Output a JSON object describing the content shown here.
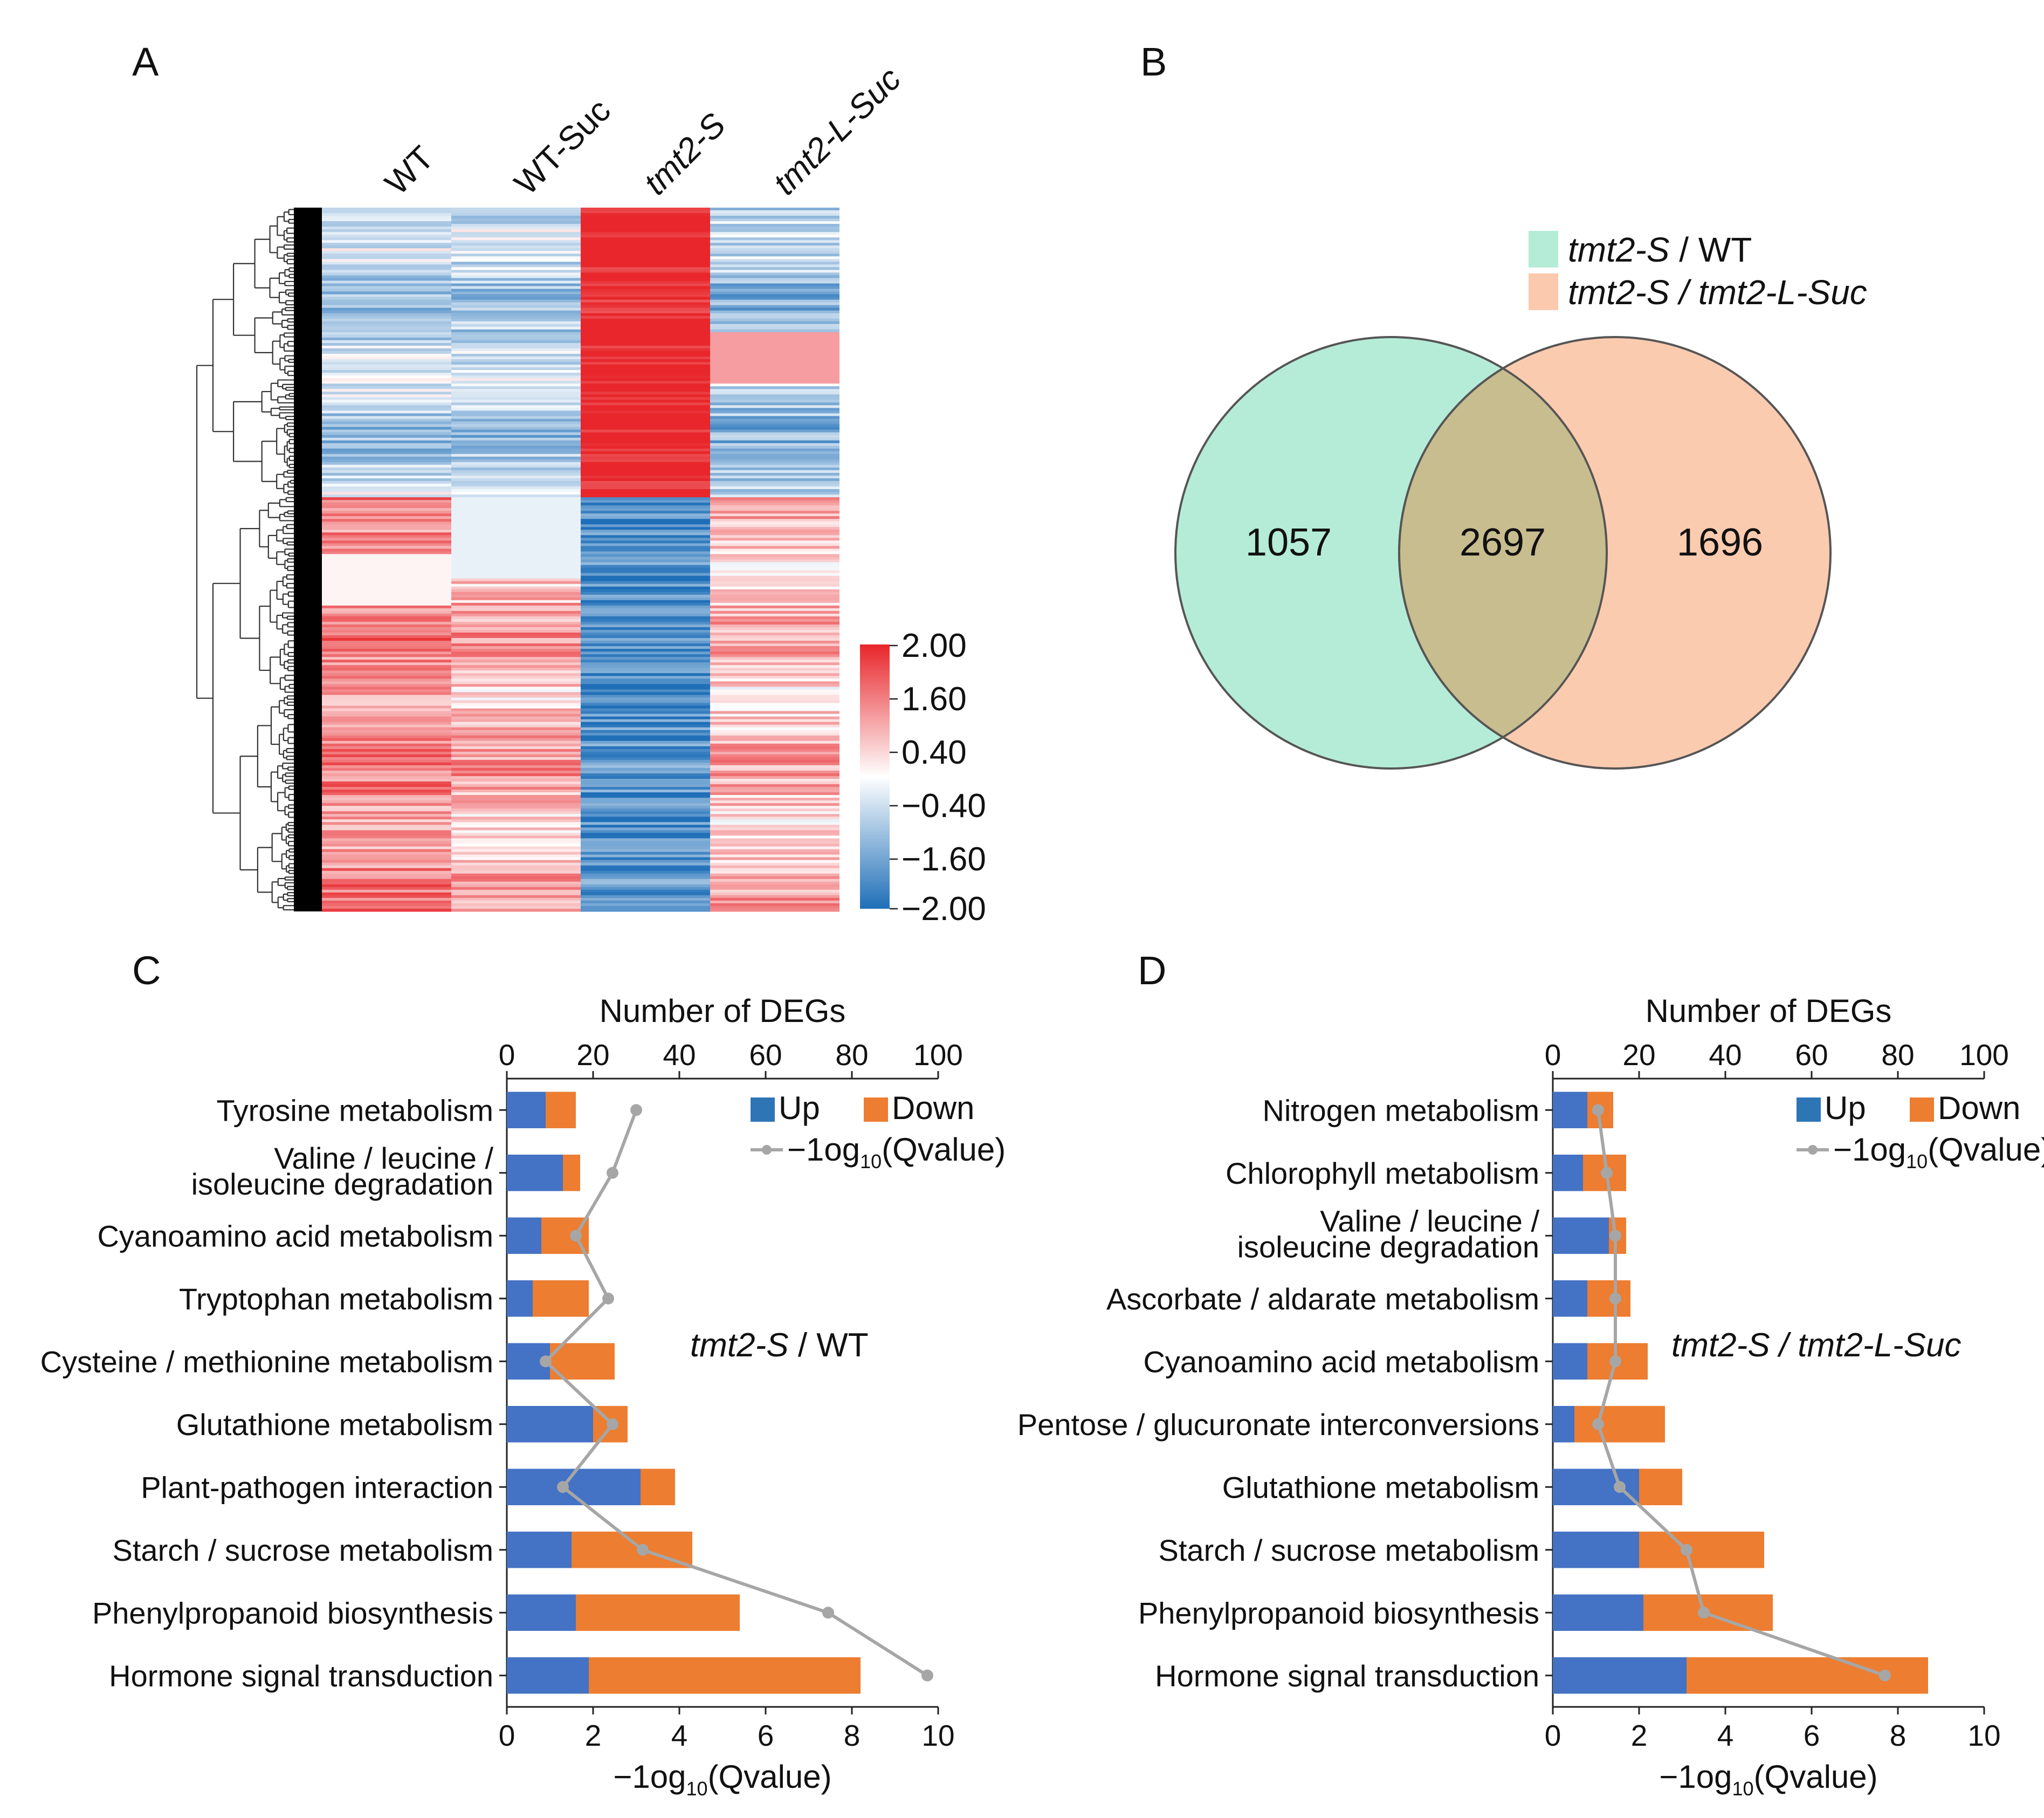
{
  "panels": {
    "A": {
      "label": "A",
      "columns": [
        {
          "main": "WT",
          "italic": false,
          "suffix": ""
        },
        {
          "main": "WT",
          "italic": false,
          "suffix": "-Suc"
        },
        {
          "main": "tmt2-S",
          "italic": true,
          "suffix": ""
        },
        {
          "main": "tmt2-L-Suc",
          "italic": true,
          "suffix": ""
        }
      ],
      "colorbar_ticks": [
        "2.00",
        "1.60",
        "0.40",
        "−0.40",
        "−1.60",
        "−2.00"
      ],
      "colors": {
        "high": "#e8262b",
        "mid": "#ffffff",
        "low": "#1f6fb8"
      }
    },
    "B": {
      "label": "B",
      "legend": [
        {
          "part1": "tmt2-S",
          "part2": " / WT",
          "part2_italic": false,
          "color": "#b5ecd8"
        },
        {
          "part1": "tmt2-S",
          "part2": " / tmt2-L-Suc",
          "part2_italic": true,
          "color": "#fbc9ad"
        }
      ],
      "counts": {
        "left": "1057",
        "overlap": "2697",
        "right": "1696"
      }
    },
    "C": {
      "label": "C"
    },
    "D": {
      "label": "D"
    }
  },
  "legend_labels": {
    "up": "Up",
    "down": "Down",
    "qvalue_prefix": "−1og",
    "qvalue_sub": "10",
    "qvalue_suffix": "(Qvalue)"
  },
  "axis_labels": {
    "top": "Number of DEGs",
    "bottom_prefix": "−1og",
    "bottom_sub": "10",
    "bottom_suffix": "(Qvalue)"
  },
  "series_colors": {
    "up": "#4472c4",
    "down": "#ed7d31",
    "line": "#a6a6a6"
  },
  "chart_data": [
    {
      "type": "heatmap",
      "panel": "A",
      "columns": [
        "WT",
        "WT-Suc",
        "tmt2-S",
        "tmt2-L-Suc"
      ],
      "color_range": [
        -2.0,
        2.0
      ],
      "colorbar_ticks": [
        2.0,
        1.6,
        0.4,
        -0.4,
        -1.6,
        -2.0
      ],
      "row_clusters": [
        {
          "rows_fraction": 0.41,
          "values": [
            -0.6,
            -0.8,
            2.0,
            -0.9
          ]
        },
        {
          "rows_fraction": 0.59,
          "values": [
            1.0,
            0.7,
            -1.5,
            0.5
          ]
        }
      ]
    },
    {
      "type": "venn",
      "panel": "B",
      "sets": [
        "tmt2-S / WT",
        "tmt2-S / tmt2-L-Suc"
      ],
      "only_first": 1057,
      "overlap": 2697,
      "only_second": 1696
    },
    {
      "type": "bar",
      "panel": "C",
      "orientation": "horizontal",
      "stacked": true,
      "title": "tmt2-S / WT",
      "title_parts": [
        {
          "text": "tmt2-S",
          "italic": true
        },
        {
          "text": " / WT",
          "italic": false
        }
      ],
      "categories": [
        [
          "Tyrosine metabolism"
        ],
        [
          "Valine / leucine /",
          "isoleucine degradation"
        ],
        [
          "Cyanoamino acid metabolism"
        ],
        [
          "Tryptophan metabolism"
        ],
        [
          "Cysteine / methionine metabolism"
        ],
        [
          "Glutathione metabolism"
        ],
        [
          "Plant-pathogen interaction"
        ],
        [
          "Starch / sucrose metabolism"
        ],
        [
          "Phenylpropanoid biosynthesis"
        ],
        [
          "Hormone signal transduction"
        ]
      ],
      "series": [
        {
          "name": "Up",
          "values": [
            9,
            13,
            8,
            6,
            10,
            20,
            31,
            15,
            16,
            19
          ]
        },
        {
          "name": "Down",
          "values": [
            7,
            4,
            11,
            13,
            15,
            8,
            8,
            28,
            38,
            63
          ]
        }
      ],
      "line": {
        "name": "−1og10(Qvalue)",
        "values": [
          3.0,
          2.45,
          1.6,
          2.35,
          0.9,
          2.45,
          1.3,
          3.15,
          7.45,
          9.75
        ]
      },
      "xlim_top": [
        0,
        100
      ],
      "xticks_top": [
        0,
        20,
        40,
        60,
        80,
        100
      ],
      "xlabel_top": "Number of DEGs",
      "xlim_bottom": [
        0,
        10
      ],
      "xticks_bottom": [
        0,
        2,
        4,
        6,
        8,
        10
      ],
      "xlabel_bottom": "−1og10(Qvalue)"
    },
    {
      "type": "bar",
      "panel": "D",
      "orientation": "horizontal",
      "stacked": true,
      "title": "tmt2-S / tmt2-L-Suc",
      "title_parts": [
        {
          "text": "tmt2-S / tmt2-L-Suc",
          "italic": true
        }
      ],
      "categories": [
        [
          "Nitrogen metabolism"
        ],
        [
          "Chlorophyll metabolism"
        ],
        [
          "Valine / leucine /",
          "isoleucine degradation"
        ],
        [
          "Ascorbate / aldarate metabolism"
        ],
        [
          "Cyanoamino acid metabolism"
        ],
        [
          "Pentose / glucuronate interconversions"
        ],
        [
          "Glutathione metabolism"
        ],
        [
          "Starch / sucrose metabolism"
        ],
        [
          "Phenylpropanoid biosynthesis"
        ],
        [
          "Hormone signal transduction"
        ]
      ],
      "series": [
        {
          "name": "Up",
          "values": [
            8,
            7,
            13,
            8,
            8,
            5,
            20,
            20,
            21,
            31
          ]
        },
        {
          "name": "Down",
          "values": [
            6,
            10,
            4,
            10,
            14,
            21,
            10,
            29,
            30,
            56
          ]
        }
      ],
      "line": {
        "name": "−1og10(Qvalue)",
        "values": [
          1.05,
          1.25,
          1.45,
          1.45,
          1.45,
          1.05,
          1.55,
          3.1,
          3.5,
          7.7
        ]
      },
      "xlim_top": [
        0,
        100
      ],
      "xticks_top": [
        0,
        20,
        40,
        60,
        80,
        100
      ],
      "xlabel_top": "Number of DEGs",
      "xlim_bottom": [
        0,
        10
      ],
      "xticks_bottom": [
        0,
        2,
        4,
        6,
        8,
        10
      ],
      "xlabel_bottom": "−1og10(Qvalue)"
    }
  ]
}
